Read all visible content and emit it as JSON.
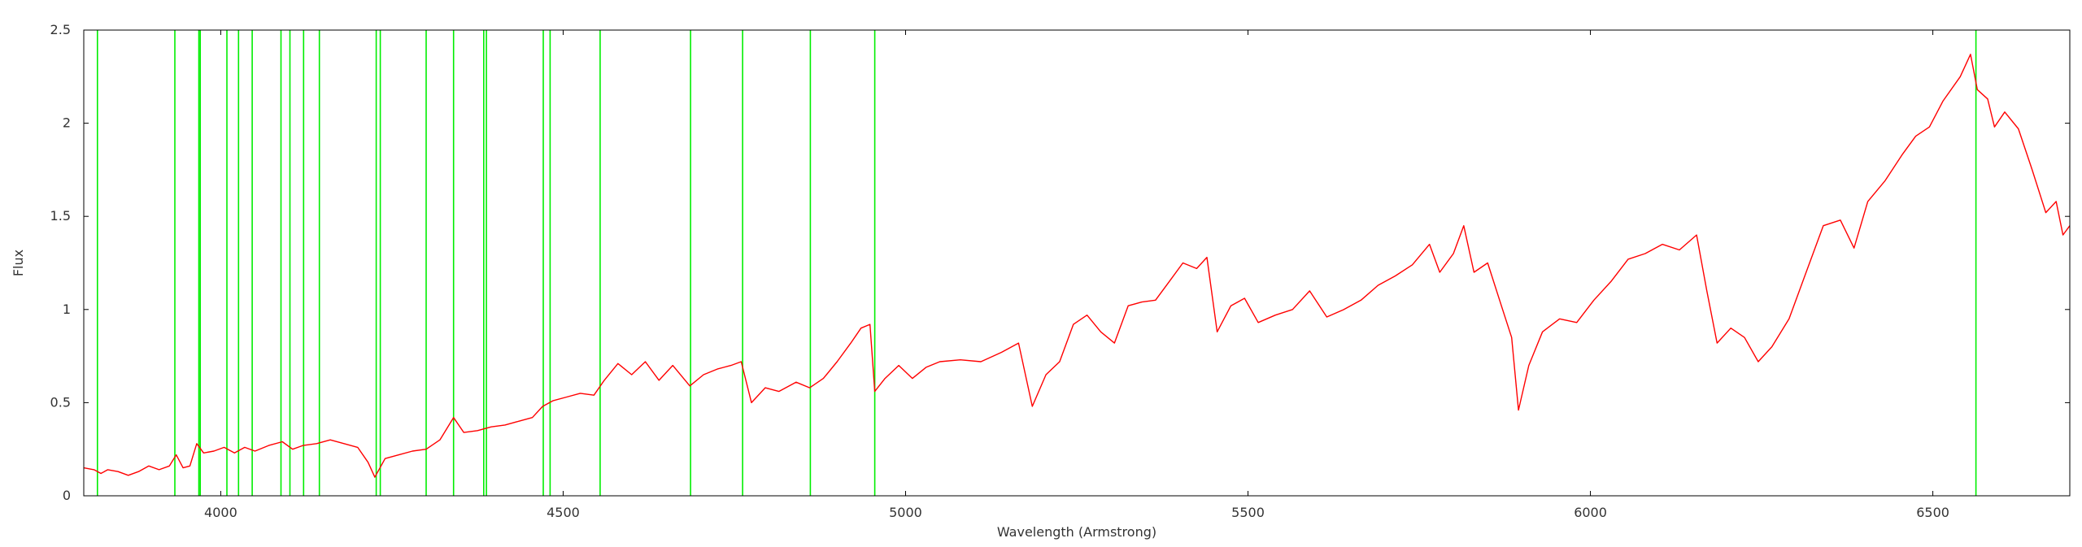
{
  "chart_data": {
    "type": "line",
    "title": "",
    "xlabel": "Wavelength (Armstrong)",
    "ylabel": "Flux",
    "xlim": [
      3800,
      6700
    ],
    "ylim": [
      0,
      2.5
    ],
    "xticks": [
      4000,
      4500,
      5000,
      5500,
      6000,
      6500
    ],
    "xtick_labels": [
      "4000",
      "4500",
      "5000",
      "5500",
      "6000",
      "6500"
    ],
    "yticks": [
      0,
      0.5,
      1,
      1.5,
      2,
      2.5
    ],
    "ytick_labels": [
      "0",
      "0.5",
      "1",
      "1.5",
      "2",
      "2.5"
    ],
    "grid": false,
    "legend": "none",
    "colors": {
      "spectrum": "#ff0000",
      "lines": "#00ee00",
      "axes": "#000000"
    },
    "series": [
      {
        "color": "#ff0000",
        "points": [
          [
            3800,
            0.15
          ],
          [
            3815,
            0.14
          ],
          [
            3825,
            0.12
          ],
          [
            3835,
            0.14
          ],
          [
            3850,
            0.13
          ],
          [
            3865,
            0.11
          ],
          [
            3880,
            0.13
          ],
          [
            3895,
            0.16
          ],
          [
            3910,
            0.14
          ],
          [
            3925,
            0.16
          ],
          [
            3935,
            0.22
          ],
          [
            3945,
            0.15
          ],
          [
            3955,
            0.16
          ],
          [
            3965,
            0.28
          ],
          [
            3975,
            0.23
          ],
          [
            3990,
            0.24
          ],
          [
            4005,
            0.26
          ],
          [
            4020,
            0.23
          ],
          [
            4035,
            0.26
          ],
          [
            4050,
            0.24
          ],
          [
            4070,
            0.27
          ],
          [
            4090,
            0.29
          ],
          [
            4105,
            0.25
          ],
          [
            4120,
            0.27
          ],
          [
            4140,
            0.28
          ],
          [
            4160,
            0.3
          ],
          [
            4180,
            0.28
          ],
          [
            4200,
            0.26
          ],
          [
            4215,
            0.18
          ],
          [
            4225,
            0.1
          ],
          [
            4240,
            0.2
          ],
          [
            4260,
            0.22
          ],
          [
            4280,
            0.24
          ],
          [
            4300,
            0.25
          ],
          [
            4320,
            0.3
          ],
          [
            4340,
            0.42
          ],
          [
            4355,
            0.34
          ],
          [
            4375,
            0.35
          ],
          [
            4395,
            0.37
          ],
          [
            4415,
            0.38
          ],
          [
            4435,
            0.4
          ],
          [
            4455,
            0.42
          ],
          [
            4470,
            0.48
          ],
          [
            4485,
            0.51
          ],
          [
            4505,
            0.53
          ],
          [
            4525,
            0.55
          ],
          [
            4545,
            0.54
          ],
          [
            4560,
            0.62
          ],
          [
            4580,
            0.71
          ],
          [
            4600,
            0.65
          ],
          [
            4620,
            0.72
          ],
          [
            4640,
            0.62
          ],
          [
            4660,
            0.7
          ],
          [
            4685,
            0.59
          ],
          [
            4705,
            0.65
          ],
          [
            4725,
            0.68
          ],
          [
            4745,
            0.7
          ],
          [
            4760,
            0.72
          ],
          [
            4775,
            0.5
          ],
          [
            4795,
            0.58
          ],
          [
            4815,
            0.56
          ],
          [
            4840,
            0.61
          ],
          [
            4860,
            0.58
          ],
          [
            4880,
            0.63
          ],
          [
            4900,
            0.72
          ],
          [
            4920,
            0.82
          ],
          [
            4935,
            0.9
          ],
          [
            4948,
            0.92
          ],
          [
            4955,
            0.56
          ],
          [
            4970,
            0.63
          ],
          [
            4990,
            0.7
          ],
          [
            5010,
            0.63
          ],
          [
            5030,
            0.69
          ],
          [
            5050,
            0.72
          ],
          [
            5080,
            0.73
          ],
          [
            5110,
            0.72
          ],
          [
            5140,
            0.77
          ],
          [
            5165,
            0.82
          ],
          [
            5185,
            0.48
          ],
          [
            5205,
            0.65
          ],
          [
            5225,
            0.72
          ],
          [
            5245,
            0.92
          ],
          [
            5265,
            0.97
          ],
          [
            5285,
            0.88
          ],
          [
            5305,
            0.82
          ],
          [
            5325,
            1.02
          ],
          [
            5345,
            1.04
          ],
          [
            5365,
            1.05
          ],
          [
            5385,
            1.15
          ],
          [
            5405,
            1.25
          ],
          [
            5425,
            1.22
          ],
          [
            5440,
            1.28
          ],
          [
            5455,
            0.88
          ],
          [
            5475,
            1.02
          ],
          [
            5495,
            1.06
          ],
          [
            5515,
            0.93
          ],
          [
            5540,
            0.97
          ],
          [
            5565,
            1.0
          ],
          [
            5590,
            1.1
          ],
          [
            5615,
            0.96
          ],
          [
            5640,
            1.0
          ],
          [
            5665,
            1.05
          ],
          [
            5690,
            1.13
          ],
          [
            5715,
            1.18
          ],
          [
            5740,
            1.24
          ],
          [
            5765,
            1.35
          ],
          [
            5780,
            1.2
          ],
          [
            5800,
            1.3
          ],
          [
            5815,
            1.45
          ],
          [
            5830,
            1.2
          ],
          [
            5850,
            1.25
          ],
          [
            5870,
            1.02
          ],
          [
            5885,
            0.85
          ],
          [
            5895,
            0.46
          ],
          [
            5910,
            0.7
          ],
          [
            5930,
            0.88
          ],
          [
            5955,
            0.95
          ],
          [
            5980,
            0.93
          ],
          [
            6005,
            1.05
          ],
          [
            6030,
            1.15
          ],
          [
            6055,
            1.27
          ],
          [
            6080,
            1.3
          ],
          [
            6105,
            1.35
          ],
          [
            6130,
            1.32
          ],
          [
            6155,
            1.4
          ],
          [
            6170,
            1.1
          ],
          [
            6185,
            0.82
          ],
          [
            6205,
            0.9
          ],
          [
            6225,
            0.85
          ],
          [
            6245,
            0.72
          ],
          [
            6265,
            0.8
          ],
          [
            6290,
            0.95
          ],
          [
            6315,
            1.2
          ],
          [
            6340,
            1.45
          ],
          [
            6365,
            1.48
          ],
          [
            6385,
            1.33
          ],
          [
            6405,
            1.58
          ],
          [
            6430,
            1.69
          ],
          [
            6455,
            1.83
          ],
          [
            6475,
            1.93
          ],
          [
            6495,
            1.98
          ],
          [
            6515,
            2.12
          ],
          [
            6540,
            2.25
          ],
          [
            6555,
            2.37
          ],
          [
            6565,
            2.18
          ],
          [
            6580,
            2.13
          ],
          [
            6590,
            1.98
          ],
          [
            6605,
            2.06
          ],
          [
            6625,
            1.97
          ],
          [
            6645,
            1.75
          ],
          [
            6665,
            1.52
          ],
          [
            6680,
            1.58
          ],
          [
            6690,
            1.4
          ],
          [
            6700,
            1.45
          ]
        ]
      }
    ],
    "vertical_lines": [
      3820,
      3933,
      3968,
      3970,
      4009,
      4026,
      4046,
      4088,
      4101,
      4121,
      4144,
      4227,
      4233,
      4300,
      4340,
      4384,
      4388,
      4471,
      4481,
      4554,
      4686,
      4762,
      4861,
      4955,
      6563
    ]
  }
}
